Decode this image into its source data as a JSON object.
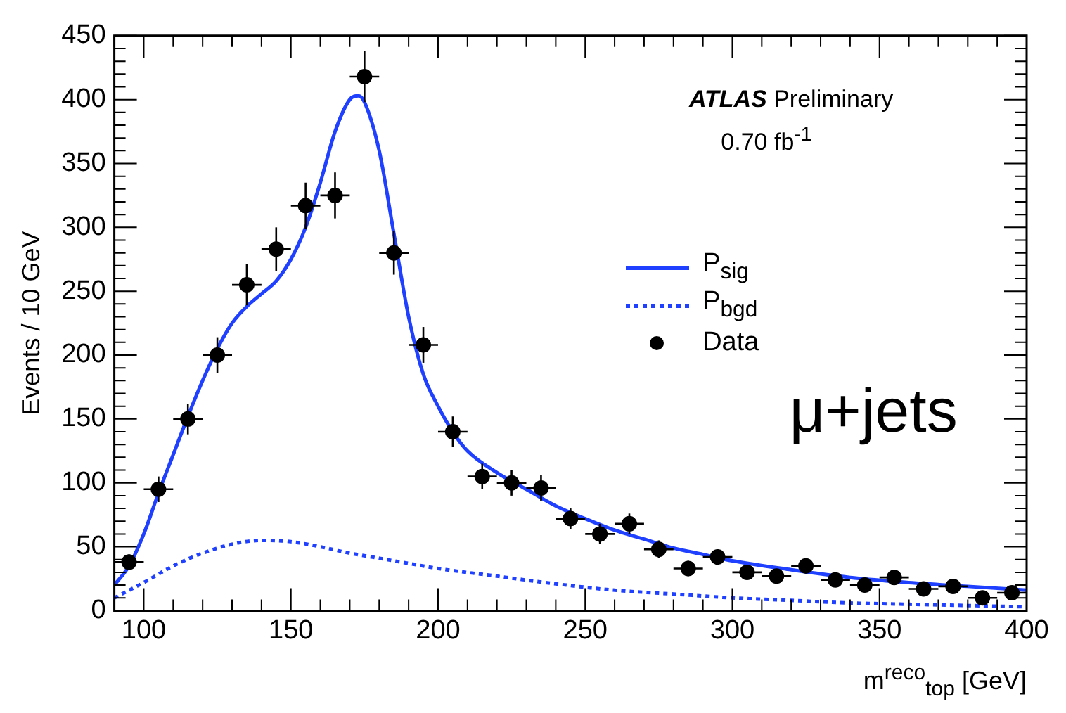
{
  "chart_data": {
    "type": "scatter",
    "xlabel": "m$^{reco}$$_{top}$ [GeV]",
    "ylabel": "Events / 10 GeV",
    "xlim": [
      90,
      400
    ],
    "xticks": [
      100,
      150,
      200,
      250,
      300,
      350,
      400
    ],
    "ylim": [
      0,
      450
    ],
    "yticks": [
      0,
      50,
      100,
      150,
      200,
      250,
      300,
      350,
      400,
      450
    ],
    "grid": false,
    "legend": "right",
    "annotations": [
      "ATLAS Preliminary",
      "0.70 fb$^{-1}$",
      "μ+jets"
    ],
    "series": [
      {
        "name": "P$_{sig}$",
        "type": "line",
        "color": "#2040ff",
        "line_style": "solid",
        "marker": "none",
        "x": [
          90,
          95,
          100,
          105,
          110,
          115,
          120,
          125,
          130,
          135,
          140,
          145,
          150,
          155,
          160,
          165,
          170,
          173,
          175,
          180,
          185,
          190,
          195,
          200,
          205,
          210,
          220,
          230,
          240,
          250,
          260,
          270,
          280,
          290,
          300,
          320,
          340,
          360,
          380,
          400
        ],
        "values": [
          20,
          35,
          60,
          92,
          122,
          152,
          180,
          205,
          225,
          238,
          248,
          258,
          275,
          300,
          335,
          375,
          400,
          403,
          398,
          360,
          295,
          230,
          185,
          160,
          140,
          125,
          108,
          95,
          82,
          72,
          63,
          56,
          49,
          44,
          39,
          32,
          26,
          22,
          19,
          16
        ]
      },
      {
        "name": "P$_{bgd}$",
        "type": "line",
        "color": "#2040ff",
        "line_style": "dotted",
        "marker": "none",
        "x": [
          90,
          100,
          110,
          120,
          130,
          140,
          150,
          160,
          170,
          180,
          190,
          200,
          220,
          240,
          260,
          280,
          300,
          320,
          340,
          360,
          380,
          400
        ],
        "values": [
          10,
          22,
          35,
          45,
          52,
          55,
          54,
          50,
          45,
          41,
          37,
          33,
          27,
          21,
          16,
          13,
          10,
          8,
          6,
          5,
          4,
          3
        ]
      },
      {
        "name": "Data",
        "color": "#000000",
        "marker": "circle",
        "x": [
          95,
          105,
          115,
          125,
          135,
          145,
          155,
          165,
          175,
          185,
          195,
          205,
          215,
          225,
          235,
          245,
          255,
          265,
          275,
          285,
          295,
          305,
          315,
          325,
          335,
          345,
          355,
          365,
          375,
          385,
          395
        ],
        "values": [
          38,
          95,
          150,
          200,
          255,
          283,
          317,
          325,
          418,
          280,
          208,
          140,
          105,
          100,
          96,
          72,
          60,
          68,
          48,
          33,
          42,
          30,
          27,
          35,
          24,
          20,
          26,
          17,
          19,
          10,
          14
        ],
        "errors": [
          6,
          10,
          12,
          14,
          16,
          17,
          18,
          18,
          20,
          17,
          14,
          12,
          10,
          10,
          10,
          8,
          8,
          8,
          7,
          6,
          6,
          5,
          5,
          6,
          5,
          4,
          5,
          4,
          4,
          3,
          4
        ],
        "xerrors": [
          5,
          5,
          5,
          5,
          5,
          5,
          5,
          5,
          5,
          5,
          5,
          5,
          5,
          5,
          5,
          5,
          5,
          5,
          5,
          5,
          5,
          5,
          5,
          5,
          5,
          5,
          5,
          5,
          5,
          5,
          5
        ]
      }
    ]
  }
}
